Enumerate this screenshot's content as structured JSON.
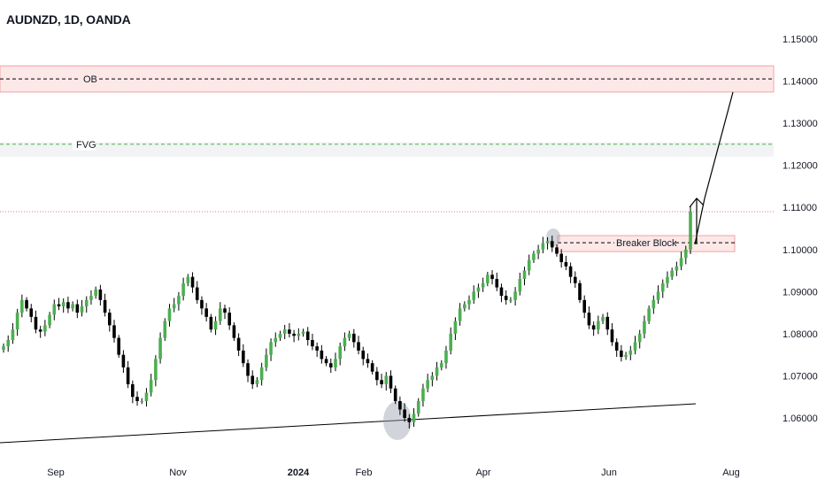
{
  "header": {
    "title": "AUDNZD, 1D, OANDA"
  },
  "colors": {
    "bull": "#4caf50",
    "bear": "#000000",
    "zone_fill": "#fde8e8",
    "zone_border": "#f5a3a3",
    "fvg_fill": "#f2f3f5",
    "fvg_line": "#4caf50",
    "ob_line": "#000000",
    "price_line": "#e57373"
  },
  "chart_data": {
    "type": "candlestick",
    "symbol": "AUDNZD",
    "timeframe": "1D",
    "source": "OANDA",
    "ylim": [
      1.0535,
      1.1525
    ],
    "y_ticks": [
      "1.15000",
      "1.14000",
      "1.13000",
      "1.12000",
      "1.11000",
      "1.10000",
      "1.09000",
      "1.08000",
      "1.07000",
      "1.06000"
    ],
    "x_ticks": [
      {
        "label": "Sep",
        "bold": false
      },
      {
        "label": "Nov",
        "bold": false
      },
      {
        "label": "2024",
        "bold": true
      },
      {
        "label": "Feb",
        "bold": false
      },
      {
        "label": "Apr",
        "bold": false
      },
      {
        "label": "Jun",
        "bold": false
      },
      {
        "label": "Aug",
        "bold": false
      }
    ],
    "zones": [
      {
        "label": "OB",
        "low": 1.1374,
        "high": 1.1436,
        "mid": 1.1405,
        "style": "supply"
      },
      {
        "label": "FVG",
        "low": 1.1233,
        "high": 1.1255,
        "mid": 1.125,
        "style": "fvg"
      },
      {
        "label": "Breaker Block",
        "low": 1.0995,
        "high": 1.1033,
        "mid": 1.1016,
        "style": "breaker"
      }
    ],
    "current_price": 1.109,
    "closes": [
      1.077,
      1.0785,
      1.081,
      1.085,
      1.088,
      1.086,
      1.084,
      1.081,
      1.0805,
      1.082,
      1.0845,
      1.087,
      1.0865,
      1.0875,
      1.086,
      1.087,
      1.085,
      1.0865,
      1.088,
      1.089,
      1.0905,
      1.088,
      1.085,
      1.082,
      1.079,
      1.075,
      1.072,
      1.068,
      1.065,
      1.064,
      1.064,
      1.066,
      1.069,
      1.074,
      1.079,
      1.083,
      1.086,
      1.087,
      1.089,
      1.092,
      1.0935,
      1.091,
      1.088,
      1.086,
      1.084,
      1.081,
      1.083,
      1.086,
      1.085,
      1.082,
      1.079,
      1.076,
      1.073,
      1.07,
      1.068,
      1.069,
      1.072,
      1.075,
      1.078,
      1.079,
      1.08,
      1.081,
      1.08,
      1.0795,
      1.08,
      1.0805,
      1.0785,
      1.077,
      1.076,
      1.074,
      1.073,
      1.072,
      1.074,
      1.077,
      1.079,
      1.08,
      1.078,
      1.076,
      1.074,
      1.073,
      1.071,
      1.069,
      1.068,
      1.07,
      1.067,
      1.064,
      1.062,
      1.06,
      1.059,
      1.061,
      1.064,
      1.067,
      1.069,
      1.07,
      1.072,
      1.073,
      1.076,
      1.08,
      1.083,
      1.086,
      1.087,
      1.088,
      1.09,
      1.091,
      1.092,
      1.094,
      1.093,
      1.091,
      1.089,
      1.088,
      1.088,
      1.09,
      1.093,
      1.095,
      1.0975,
      1.099,
      1.1,
      1.1015,
      1.102,
      1.1005,
      1.099,
      1.097,
      1.096,
      1.0935,
      1.092,
      1.088,
      1.085,
      1.082,
      1.081,
      1.083,
      1.084,
      1.081,
      1.078,
      1.076,
      1.0745,
      1.075,
      1.076,
      1.078,
      1.08,
      1.083,
      1.086,
      1.088,
      1.09,
      1.092,
      1.0935,
      1.095,
      1.096,
      1.098,
      1.1,
      1.109
    ]
  }
}
